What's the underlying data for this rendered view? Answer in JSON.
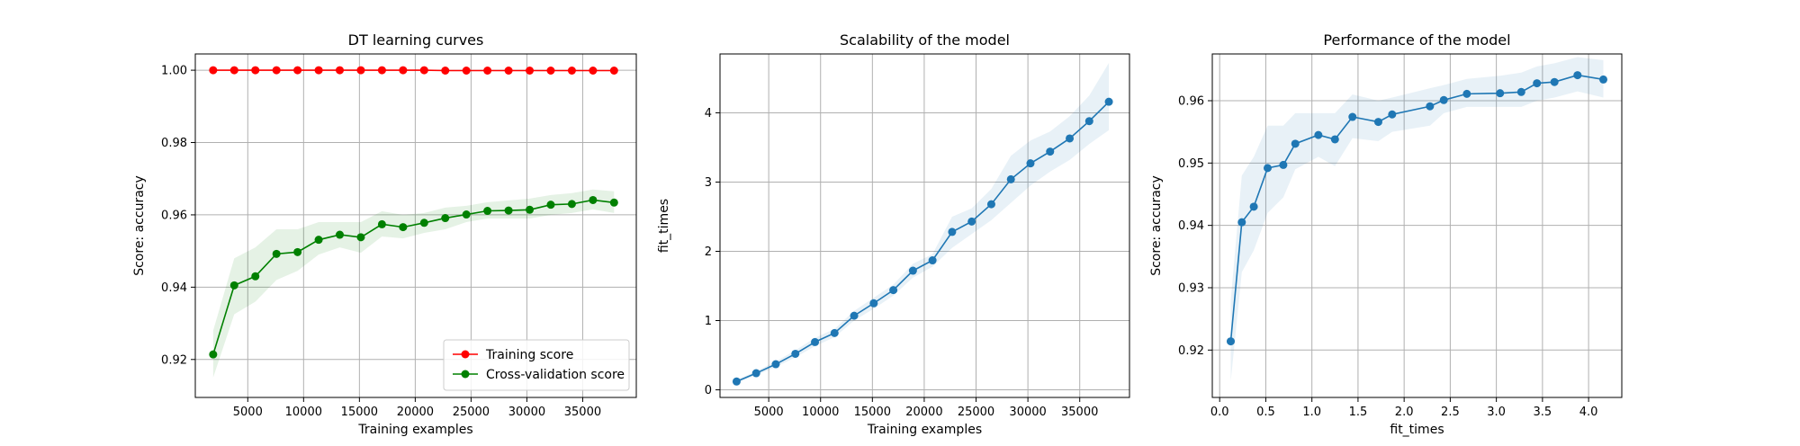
{
  "chart_data": [
    {
      "type": "line",
      "title": "DT learning curves",
      "xlabel": "Training examples",
      "ylabel": "Score: accuracy",
      "xlim": [
        300,
        39800
      ],
      "ylim": [
        0.9095,
        1.0045
      ],
      "xticks": [
        5000,
        10000,
        15000,
        20000,
        25000,
        30000,
        35000
      ],
      "yticks": [
        0.92,
        0.94,
        0.96,
        0.98,
        1.0
      ],
      "ytick_labels": [
        "0.92",
        "0.94",
        "0.96",
        "0.98",
        "1.00"
      ],
      "grid": true,
      "legend_position": "lower-right",
      "x": [
        1900,
        3790,
        5680,
        7570,
        9460,
        11350,
        13240,
        15130,
        17020,
        18910,
        20800,
        22690,
        24580,
        26470,
        28360,
        30250,
        32140,
        34030,
        35920,
        37810
      ],
      "series": [
        {
          "name": "Training score",
          "color": "#ff0000",
          "values": [
            1.0,
            1.0,
            1.0,
            1.0,
            1.0,
            1.0,
            1.0,
            1.0,
            1.0,
            1.0,
            1.0,
            0.9999,
            0.9999,
            0.9999,
            0.9999,
            0.9999,
            0.9999,
            0.9999,
            0.9999,
            0.9999
          ],
          "band_lower": [
            1.0,
            1.0,
            1.0,
            1.0,
            1.0,
            1.0,
            1.0,
            1.0,
            1.0,
            1.0,
            1.0,
            0.9998,
            0.9998,
            0.9998,
            0.9998,
            0.9998,
            0.9998,
            0.9998,
            0.9998,
            0.9998
          ],
          "band_upper": [
            1.0,
            1.0,
            1.0,
            1.0,
            1.0,
            1.0,
            1.0,
            1.0,
            1.0,
            1.0,
            1.0,
            1.0,
            1.0,
            1.0,
            1.0,
            1.0,
            1.0,
            1.0,
            1.0,
            1.0
          ]
        },
        {
          "name": "Cross-validation score",
          "color": "#008000",
          "values": [
            0.9214,
            0.9405,
            0.943,
            0.9492,
            0.9497,
            0.9531,
            0.9545,
            0.9538,
            0.9574,
            0.9566,
            0.9578,
            0.9591,
            0.9601,
            0.9611,
            0.9612,
            0.9614,
            0.9628,
            0.963,
            0.9641,
            0.9634
          ],
          "band_lower": [
            0.915,
            0.9325,
            0.936,
            0.942,
            0.9445,
            0.949,
            0.951,
            0.9495,
            0.954,
            0.9535,
            0.955,
            0.956,
            0.958,
            0.959,
            0.959,
            0.959,
            0.96,
            0.9605,
            0.9615,
            0.9605
          ],
          "band_upper": [
            0.928,
            0.948,
            0.951,
            0.956,
            0.956,
            0.958,
            0.958,
            0.958,
            0.961,
            0.96,
            0.9605,
            0.962,
            0.9625,
            0.9635,
            0.964,
            0.9645,
            0.9655,
            0.966,
            0.967,
            0.9665
          ]
        }
      ]
    },
    {
      "type": "line",
      "title": "Scalability of the model",
      "xlabel": "Training examples",
      "ylabel": "fit_times",
      "xlim": [
        300,
        39800
      ],
      "ylim": [
        -0.11,
        4.85
      ],
      "xticks": [
        5000,
        10000,
        15000,
        20000,
        25000,
        30000,
        35000
      ],
      "yticks": [
        0,
        1,
        2,
        3,
        4
      ],
      "grid": true,
      "x": [
        1900,
        3790,
        5680,
        7570,
        9460,
        11350,
        13240,
        15130,
        17020,
        18910,
        20800,
        22690,
        24580,
        26470,
        28360,
        30250,
        32140,
        34030,
        35920,
        37810
      ],
      "series": [
        {
          "color": "#1f77b4",
          "values": [
            0.12,
            0.24,
            0.37,
            0.52,
            0.69,
            0.82,
            1.07,
            1.25,
            1.44,
            1.72,
            1.87,
            2.28,
            2.43,
            2.68,
            3.04,
            3.27,
            3.44,
            3.63,
            3.88,
            4.16
          ],
          "band_lower": [
            0.1,
            0.21,
            0.33,
            0.47,
            0.63,
            0.76,
            1.0,
            1.17,
            1.36,
            1.62,
            1.78,
            2.05,
            2.25,
            2.45,
            2.7,
            2.95,
            3.15,
            3.32,
            3.55,
            3.75
          ],
          "band_upper": [
            0.14,
            0.27,
            0.41,
            0.57,
            0.75,
            0.88,
            1.14,
            1.33,
            1.52,
            1.82,
            1.96,
            2.5,
            2.62,
            2.9,
            3.38,
            3.6,
            3.73,
            3.95,
            4.25,
            4.72
          ]
        }
      ]
    },
    {
      "type": "line",
      "title": "Performance of the model",
      "xlabel": "fit_times",
      "ylabel": "Score: accuracy",
      "xlim": [
        -0.08,
        4.36
      ],
      "ylim": [
        0.9124,
        0.9675
      ],
      "xticks": [
        0.0,
        0.5,
        1.0,
        1.5,
        2.0,
        2.5,
        3.0,
        3.5,
        4.0
      ],
      "xtick_labels": [
        "0.0",
        "0.5",
        "1.0",
        "1.5",
        "2.0",
        "2.5",
        "3.0",
        "3.5",
        "4.0"
      ],
      "yticks": [
        0.92,
        0.93,
        0.94,
        0.95,
        0.96
      ],
      "ytick_labels": [
        "0.92",
        "0.93",
        "0.94",
        "0.95",
        "0.96"
      ],
      "grid": true,
      "series": [
        {
          "color": "#1f77b4",
          "x": [
            0.12,
            0.24,
            0.37,
            0.52,
            0.69,
            0.82,
            1.07,
            1.25,
            1.44,
            1.72,
            1.87,
            2.28,
            2.43,
            2.68,
            3.04,
            3.27,
            3.44,
            3.63,
            3.88,
            4.16
          ],
          "values": [
            0.9214,
            0.9405,
            0.943,
            0.9492,
            0.9497,
            0.9531,
            0.9545,
            0.9538,
            0.9574,
            0.9566,
            0.9578,
            0.9591,
            0.9601,
            0.9611,
            0.9612,
            0.9614,
            0.9628,
            0.963,
            0.9641,
            0.9634
          ],
          "band_lower": [
            0.915,
            0.9325,
            0.936,
            0.942,
            0.9445,
            0.949,
            0.951,
            0.9495,
            0.954,
            0.9535,
            0.955,
            0.956,
            0.958,
            0.959,
            0.959,
            0.959,
            0.96,
            0.9605,
            0.9615,
            0.9605
          ],
          "band_upper": [
            0.928,
            0.948,
            0.951,
            0.956,
            0.956,
            0.958,
            0.958,
            0.958,
            0.961,
            0.96,
            0.9605,
            0.962,
            0.9625,
            0.9635,
            0.964,
            0.9645,
            0.9655,
            0.966,
            0.967,
            0.9665
          ]
        }
      ]
    }
  ]
}
